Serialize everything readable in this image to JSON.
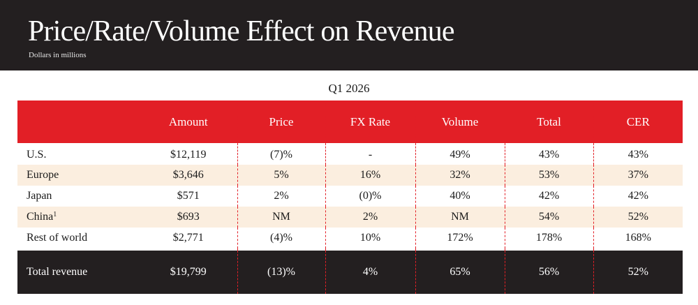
{
  "header": {
    "title": "Price/Rate/Volume Effect on Revenue",
    "subtitle": "Dollars in millions"
  },
  "table": {
    "period": "Q1 2026",
    "columns": [
      "",
      "Amount",
      "Price",
      "FX Rate",
      "Volume",
      "Total",
      "CER"
    ],
    "rows": [
      {
        "label": "U.S.",
        "footnote": "",
        "amount": "$12,119",
        "price": "(7)%",
        "fx_rate": "-",
        "volume": "49%",
        "total": "43%",
        "cer": "43%"
      },
      {
        "label": "Europe",
        "footnote": "",
        "amount": "$3,646",
        "price": "5%",
        "fx_rate": "16%",
        "volume": "32%",
        "total": "53%",
        "cer": "37%"
      },
      {
        "label": "Japan",
        "footnote": "",
        "amount": "$571",
        "price": "2%",
        "fx_rate": "(0)%",
        "volume": "40%",
        "total": "42%",
        "cer": "42%"
      },
      {
        "label": "China",
        "footnote": "1",
        "amount": "$693",
        "price": "NM",
        "fx_rate": "2%",
        "volume": "NM",
        "total": "54%",
        "cer": "52%"
      },
      {
        "label": "Rest of world",
        "footnote": "",
        "amount": "$2,771",
        "price": "(4)%",
        "fx_rate": "10%",
        "volume": "172%",
        "total": "178%",
        "cer": "168%"
      }
    ],
    "total_row": {
      "label": "Total revenue",
      "amount": "$19,799",
      "price": "(13)%",
      "fx_rate": "4%",
      "volume": "65%",
      "total": "56%",
      "cer": "52%"
    }
  },
  "colors": {
    "header_bg": "#231f20",
    "table_header_bg": "#e21f26",
    "band_bg": "#fbeedf",
    "total_bg": "#231f20",
    "divider": "#e21f26"
  }
}
